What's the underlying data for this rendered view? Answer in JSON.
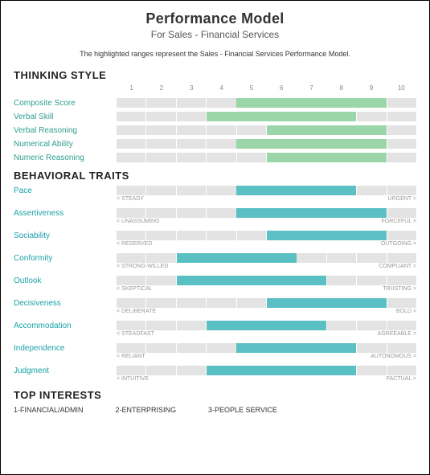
{
  "title": "Performance Model",
  "subtitle": "For Sales - Financial Services",
  "intro": "The highlighted ranges represent the Sales - Financial Services Performance Model.",
  "colors": {
    "thinking_fill": "#9bd6a8",
    "behavior_fill": "#5bc0c4",
    "bar_bg": "#e3e3e3",
    "thinking_label": "#2f9e8f",
    "behavior_label": "#1aa1a8"
  },
  "scale": {
    "min": 1,
    "max": 10,
    "ticks": [
      1,
      2,
      3,
      4,
      5,
      6,
      7,
      8,
      9,
      10
    ]
  },
  "thinking": {
    "heading": "THINKING STYLE",
    "rows": [
      {
        "label": "Composite Score",
        "range": [
          5,
          9
        ]
      },
      {
        "label": "Verbal Skill",
        "range": [
          4,
          8
        ]
      },
      {
        "label": "Verbal Reasoning",
        "range": [
          6,
          9
        ]
      },
      {
        "label": "Numerical Ability",
        "range": [
          5,
          9
        ]
      },
      {
        "label": "Numeric Reasoning",
        "range": [
          6,
          9
        ]
      }
    ]
  },
  "behavioral": {
    "heading": "BEHAVIORAL TRAITS",
    "rows": [
      {
        "label": "Pace",
        "range": [
          5,
          8
        ],
        "left": "< STEADY",
        "right": "URGENT >"
      },
      {
        "label": "Assertiveness",
        "range": [
          5,
          9
        ],
        "left": "< UNASSUMING",
        "right": "FORCEFUL >"
      },
      {
        "label": "Sociability",
        "range": [
          6,
          9
        ],
        "left": "< RESERVED",
        "right": "OUTGOING >"
      },
      {
        "label": "Conformity",
        "range": [
          3,
          6
        ],
        "left": "< STRONG-WILLED",
        "right": "COMPLIANT >"
      },
      {
        "label": "Outlook",
        "range": [
          3,
          7
        ],
        "left": "< SKEPTICAL",
        "right": "TRUSTING >"
      },
      {
        "label": "Decisiveness",
        "range": [
          6,
          9
        ],
        "left": "< DELIBERATE",
        "right": "BOLD >"
      },
      {
        "label": "Accommodation",
        "range": [
          4,
          7
        ],
        "left": "< STEADFAST",
        "right": "AGREEABLE >"
      },
      {
        "label": "Independence",
        "range": [
          5,
          8
        ],
        "left": "< RELIANT",
        "right": "AUTONOMOUS >"
      },
      {
        "label": "Judgment",
        "range": [
          4,
          8
        ],
        "left": "< INTUITIVE",
        "right": "FACTUAL >"
      }
    ]
  },
  "interests": {
    "heading": "TOP INTERESTS",
    "items": [
      "1-FINANCIAL/ADMIN",
      "2-ENTERPRISING",
      "3-PEOPLE SERVICE"
    ]
  }
}
